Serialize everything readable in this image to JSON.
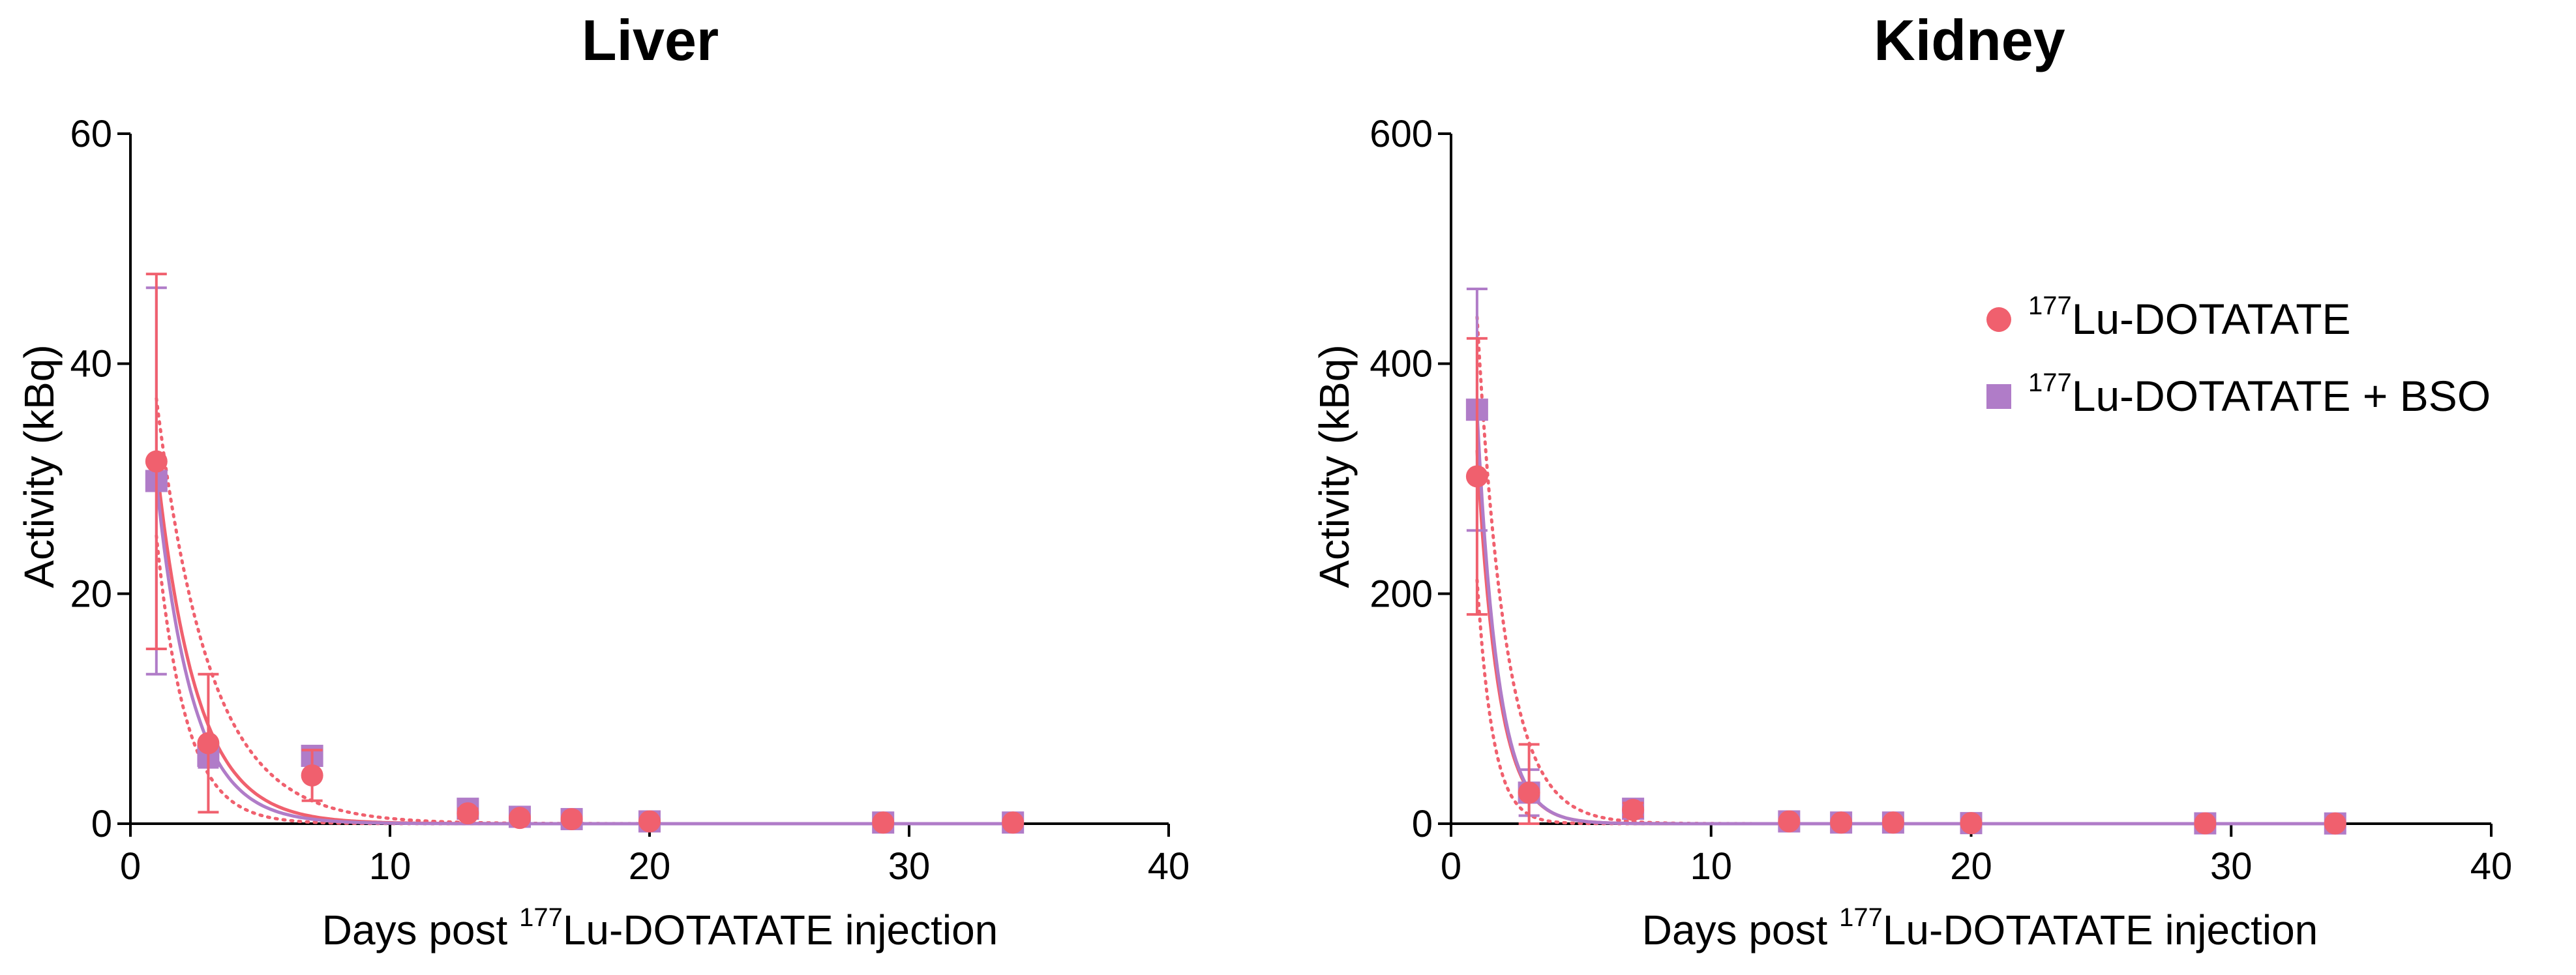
{
  "colors": {
    "series1": "#f0606e",
    "series2": "#b07cc8",
    "axis": "#000000"
  },
  "legend": [
    {
      "sup": "177",
      "label": "Lu-DOTATATE",
      "marker": "circle"
    },
    {
      "sup": "177",
      "label": "Lu-DOTATATE + BSO",
      "marker": "square"
    }
  ],
  "chart_data": [
    {
      "type": "scatter",
      "title": "Liver",
      "xlabel_prefix": "Days post ",
      "xlabel_sup": "177",
      "xlabel_suffix": "Lu-DOTATATE injection",
      "ylabel": "Activity (kBq)",
      "xlim": [
        0,
        40
      ],
      "ylim": [
        0,
        60
      ],
      "xticks": [
        0,
        10,
        20,
        30,
        40
      ],
      "yticks": [
        0,
        20,
        40,
        60
      ],
      "series": [
        {
          "name": "177Lu-DOTATATE",
          "marker": "circle",
          "x": [
            1,
            3,
            7,
            13,
            15,
            17,
            20,
            29,
            34
          ],
          "y": [
            31.5,
            7.0,
            4.2,
            0.9,
            0.5,
            0.4,
            0.2,
            0.1,
            0.1
          ],
          "err": [
            16.3,
            6.0,
            2.2,
            0.4,
            0.2,
            0.2,
            0.1,
            0.05,
            0.05
          ],
          "fit": {
            "model": "one-phase decay",
            "y0": 60.2,
            "k": 0.65,
            "ci_dotted": true
          }
        },
        {
          "name": "177Lu-DOTATATE + BSO",
          "marker": "square",
          "x": [
            1,
            3,
            7,
            13,
            15,
            17,
            20,
            29,
            34
          ],
          "y": [
            29.8,
            5.9,
            5.9,
            1.3,
            0.6,
            0.4,
            0.2,
            0.1,
            0.1
          ],
          "err": [
            16.8,
            1.0,
            0.5,
            0.3,
            0.2,
            0.1,
            0.1,
            0.05,
            0.05
          ],
          "fit": {
            "model": "one-phase decay",
            "y0": 61.2,
            "k": 0.72
          }
        }
      ]
    },
    {
      "type": "scatter",
      "title": "Kidney",
      "xlabel_prefix": "Days post ",
      "xlabel_sup": "177",
      "xlabel_suffix": "Lu-DOTATATE injection",
      "ylabel": "Activity (kBq)",
      "xlim": [
        0,
        40
      ],
      "ylim": [
        0,
        600
      ],
      "xticks": [
        0,
        10,
        20,
        30,
        40
      ],
      "yticks": [
        0,
        200,
        400,
        600
      ],
      "series": [
        {
          "name": "177Lu-DOTATATE",
          "marker": "circle",
          "x": [
            1,
            3,
            7,
            13,
            15,
            17,
            20,
            29,
            34
          ],
          "y": [
            302,
            27,
            12,
            2,
            1,
            1,
            0.5,
            0.3,
            0.2
          ],
          "err": [
            120,
            42,
            6,
            2,
            1,
            1,
            0.5,
            0.3,
            0.2
          ],
          "fit": {
            "model": "one-phase decay",
            "y0": 1100,
            "k": 1.22,
            "ci_dotted": true
          }
        },
        {
          "name": "177Lu-DOTATATE + BSO",
          "marker": "square",
          "x": [
            1,
            3,
            7,
            13,
            15,
            17,
            20,
            29,
            34
          ],
          "y": [
            360,
            27,
            13,
            2,
            1,
            1,
            0.5,
            0.3,
            0.2
          ],
          "err": [
            105,
            20,
            5,
            2,
            1,
            1,
            0.5,
            0.3,
            0.2
          ],
          "fit": {
            "model": "one-phase decay",
            "y0": 1250,
            "k": 1.25
          }
        }
      ]
    }
  ]
}
